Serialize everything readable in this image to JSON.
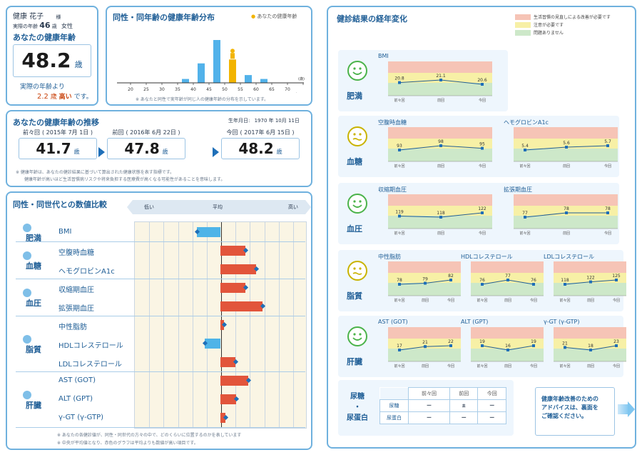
{
  "profile": {
    "name": "健康 花子",
    "honorific": "様",
    "age_label": "実際の年齢",
    "age": "46",
    "age_unit": "歳",
    "sex": "女性"
  },
  "health_age": {
    "title": "あなたの健康年齢",
    "value": "48.2",
    "unit": "歳",
    "note_prefix": "実際の年齢より",
    "diff": "2.2",
    "diff_unit": "歳",
    "diff_word": "高い",
    "note_suffix": "です。"
  },
  "distribution": {
    "title": "同性・同年齢の健康年齢分布",
    "legend": "あなたの健康年齢",
    "note": "※ あなたと同性で実年齢が同じ人の健康年齢の分布を示しています。",
    "unit": "(歳)",
    "ticks": [
      "20",
      "25",
      "30",
      "35",
      "40",
      "45",
      "50",
      "55",
      "60",
      "65",
      "70",
      "75"
    ],
    "tick_70": "70",
    "tick_70_suffix": "以上"
  },
  "trend": {
    "title": "あなたの健康年齢の推移",
    "birth_label": "生年月日:",
    "birth_date": "1970 年 10月 11日",
    "entries": [
      {
        "label": "前々回",
        "date": "( 2015年 7月 1日 )",
        "value": "41.7",
        "unit": "歳"
      },
      {
        "label": "前回",
        "date": "( 2016年 6月 22日 )",
        "value": "47.8",
        "unit": "歳"
      },
      {
        "label": "今回",
        "date": "( 2017年 6月 15日 )",
        "value": "48.2",
        "unit": "歳"
      }
    ],
    "note1": "※ 健康年齢は、あなたの健診結果に基づいて算出された健康状態を表す指標です。",
    "note2": "健康年齢が高いほど生活習慣病リスクや将来負担する医療費が高くなる可能性があることを意味します。"
  },
  "comparison": {
    "title": "同性・同世代との数値比較",
    "scale_low": "低い",
    "scale_avg": "平均",
    "scale_high": "高い",
    "categories": [
      {
        "name": "肥満",
        "items": [
          {
            "label": "BMI"
          }
        ]
      },
      {
        "name": "血糖",
        "items": [
          {
            "label": "空腹時血糖"
          },
          {
            "label": "ヘモグロビンA1c"
          }
        ]
      },
      {
        "name": "血圧",
        "items": [
          {
            "label": "収縮期血圧"
          },
          {
            "label": "拡張期血圧"
          }
        ]
      },
      {
        "name": "脂質",
        "items": [
          {
            "label": "中性脂肪"
          },
          {
            "label": "HDLコレステロール"
          },
          {
            "label": "LDLコレステロール"
          }
        ]
      },
      {
        "name": "肝臓",
        "items": [
          {
            "label": "AST (GOT)"
          },
          {
            "label": "ALT (GPT)"
          },
          {
            "label": "γ-GT (γ-GTP)"
          }
        ]
      }
    ],
    "note1": "※ あなたの各健診値が、同性・同世代の方々の中で、どのくらいに位置するのかを表しています",
    "note2": "※ 中央が平均値となり、赤色のグラフは平均よりも数値が高い項目です。"
  },
  "history": {
    "title": "健診結果の経年変化",
    "legend": [
      {
        "label": "生活習慣の見直しによる改善が必要です",
        "color": "#f6c4b6"
      },
      {
        "label": "注意が必要です",
        "color": "#f7f0a6"
      },
      {
        "label": "問題ありません",
        "color": "#cde8c9"
      }
    ],
    "x_labels": [
      "前々回",
      "前回",
      "今回"
    ],
    "groups": [
      {
        "name": "肥満",
        "face": "good",
        "charts": [
          {
            "title": "BMI",
            "values": [
              "20.8",
              "21.1",
              "20.6"
            ]
          }
        ]
      },
      {
        "name": "血糖",
        "face": "caution",
        "charts": [
          {
            "title": "空腹時血糖",
            "values": [
              "93",
              "98",
              "95"
            ]
          },
          {
            "title": "ヘモグロビンA1c",
            "values": [
              "5.4",
              "5.6",
              "5.7"
            ]
          }
        ]
      },
      {
        "name": "血圧",
        "face": "good",
        "charts": [
          {
            "title": "収縮期血圧",
            "values": [
              "119",
              "118",
              "122"
            ]
          },
          {
            "title": "拡張期血圧",
            "values": [
              "77",
              "78",
              "78"
            ]
          }
        ]
      },
      {
        "name": "脂質",
        "face": "caution",
        "charts": [
          {
            "title": "中性脂肪",
            "values": [
              "78",
              "79",
              "82"
            ]
          },
          {
            "title": "HDLコレステロール",
            "values": [
              "76",
              "77",
              "76"
            ]
          },
          {
            "title": "LDLコレステロール",
            "values": [
              "118",
              "122",
              "125"
            ]
          }
        ]
      },
      {
        "name": "肝臓",
        "face": "good",
        "charts": [
          {
            "title": "AST (GOT)",
            "values": [
              "17",
              "21",
              "22"
            ]
          },
          {
            "title": "ALT (GPT)",
            "values": [
              "19",
              "16",
              "19"
            ]
          },
          {
            "title": "γ-GT (γ-GTP)",
            "values": [
              "21",
              "18",
              "23"
            ]
          }
        ]
      }
    ],
    "urine": {
      "label_top": "尿糖",
      "label_mid": "・",
      "label_bottom": "尿蛋白",
      "cols": [
        "前々回",
        "前回",
        "今回"
      ],
      "rows": [
        {
          "name": "尿糖",
          "values": [
            "ー",
            "±",
            "ー"
          ]
        },
        {
          "name": "尿蛋白",
          "values": [
            "ー",
            "ー",
            "ー"
          ]
        }
      ]
    }
  },
  "advice": {
    "line1": "健康年齢改善のための",
    "line2": "アドバイスは、裏面を",
    "line3": "ご確認ください。"
  },
  "colors": {
    "accent": "#1f5e96",
    "border": "#6fb1de",
    "high_bar": "#e2553b",
    "low_bar": "#4eb4e8",
    "dist_bar": "#52b2ea",
    "you_bar": "#f2b400"
  },
  "chart_data": [
    {
      "type": "bar",
      "title": "同性・同年齢の健康年齢分布",
      "categories": [
        "20",
        "25",
        "30",
        "35",
        "40",
        "45",
        "50",
        "55",
        "60",
        "65",
        "70"
      ],
      "values": [
        0,
        0,
        0,
        1,
        5,
        11,
        6,
        2,
        1,
        0,
        0
      ],
      "highlight": "50"
    },
    {
      "type": "bar",
      "title": "同性・同世代との数値比較",
      "categories": [
        "BMI",
        "空腹時血糖",
        "ヘモグロビンA1c",
        "収縮期血圧",
        "拡張期血圧",
        "中性脂肪",
        "HDLコレステロール",
        "LDLコレステロール",
        "AST (GOT)",
        "ALT (GPT)",
        "γ-GT (γ-GTP)"
      ],
      "values": [
        -0.27,
        0.29,
        0.41,
        0.29,
        0.49,
        0.04,
        -0.18,
        0.17,
        0.32,
        0.18,
        0.06
      ],
      "xlim": [
        -1,
        1
      ]
    }
  ]
}
